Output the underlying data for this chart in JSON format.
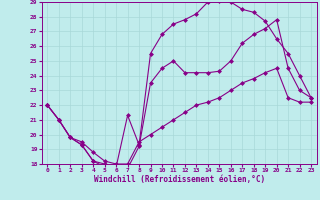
{
  "xlabel": "Windchill (Refroidissement éolien,°C)",
  "xlim": [
    -0.5,
    23.5
  ],
  "ylim": [
    18,
    29
  ],
  "xticks": [
    0,
    1,
    2,
    3,
    4,
    5,
    6,
    7,
    8,
    9,
    10,
    11,
    12,
    13,
    14,
    15,
    16,
    17,
    18,
    19,
    20,
    21,
    22,
    23
  ],
  "yticks": [
    18,
    19,
    20,
    21,
    22,
    23,
    24,
    25,
    26,
    27,
    28,
    29
  ],
  "bg_color": "#c0ecec",
  "line_color": "#880088",
  "grid_color": "#a8d8d8",
  "line1_x": [
    0,
    1,
    2,
    3,
    4,
    5,
    6,
    7,
    8,
    9,
    10,
    11,
    12,
    13,
    14,
    15,
    16,
    17,
    18,
    19,
    20,
    21,
    22,
    23
  ],
  "line1_y": [
    22,
    21,
    19.8,
    19.3,
    18.2,
    18.0,
    17.8,
    21.3,
    19.3,
    25.5,
    26.8,
    27.5,
    27.8,
    28.2,
    29.0,
    29.1,
    29.0,
    28.5,
    28.3,
    27.7,
    26.5,
    25.5,
    24.0,
    22.5
  ],
  "line2_x": [
    0,
    1,
    2,
    3,
    4,
    5,
    6,
    7,
    8,
    9,
    10,
    11,
    12,
    13,
    14,
    15,
    16,
    17,
    18,
    19,
    20,
    21,
    22,
    23
  ],
  "line2_y": [
    22,
    21,
    19.8,
    19.3,
    18.2,
    17.8,
    17.5,
    17.7,
    19.2,
    23.5,
    24.5,
    25.0,
    24.2,
    24.2,
    24.2,
    24.3,
    25.0,
    26.2,
    26.8,
    27.2,
    27.8,
    24.5,
    23.0,
    22.5
  ],
  "line3_x": [
    0,
    1,
    2,
    3,
    4,
    5,
    6,
    7,
    8,
    9,
    10,
    11,
    12,
    13,
    14,
    15,
    16,
    17,
    18,
    19,
    20,
    21,
    22,
    23
  ],
  "line3_y": [
    22,
    21,
    19.8,
    19.5,
    18.8,
    18.2,
    18.0,
    18.0,
    19.5,
    20.0,
    20.5,
    21.0,
    21.5,
    22.0,
    22.2,
    22.5,
    23.0,
    23.5,
    23.8,
    24.2,
    24.5,
    22.5,
    22.2,
    22.2
  ]
}
